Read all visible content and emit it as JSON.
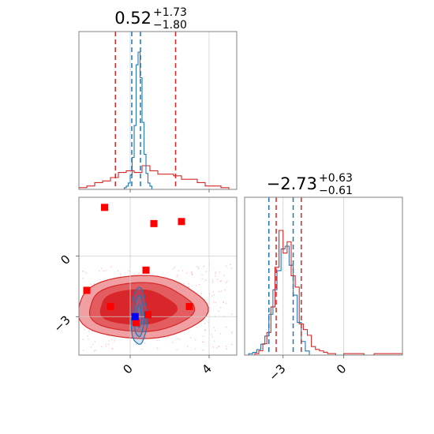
{
  "colors": {
    "red": "#d62728",
    "blue": "#1f77b4",
    "marker_red": "#ff0000",
    "marker_blue": "#0000ff",
    "fill_light": "#f0a0a2",
    "fill_mid": "#e35d60",
    "fill_dark": "#d8262b"
  },
  "chart_data": [
    {
      "type": "histogram",
      "panel": "top-left",
      "title": {
        "median": "0.52",
        "plus": "+1.73",
        "minus": "−1.80"
      },
      "x_range": [
        -2.6,
        5.4
      ],
      "red_lines": [
        -0.75,
        2.3
      ],
      "blue_lines": [
        0.08,
        0.52
      ],
      "series": [
        {
          "color": "red",
          "bins": [
            -2.6,
            -2.2,
            -1.8,
            -1.4,
            -1.0,
            -0.6,
            -0.2,
            0.2,
            0.6,
            1.0,
            1.4,
            1.8,
            2.2,
            2.6,
            3.0,
            3.4,
            3.8,
            4.2,
            4.6,
            5.0,
            5.4
          ],
          "counts": [
            1,
            2,
            4,
            5,
            7,
            10,
            11,
            10,
            14,
            11,
            9,
            9,
            8,
            6,
            6,
            4,
            2,
            2,
            1,
            0
          ]
        },
        {
          "color": "blue",
          "bins": [
            -0.3,
            -0.2,
            -0.1,
            0.0,
            0.1,
            0.2,
            0.3,
            0.4,
            0.5,
            0.6,
            0.7,
            0.8,
            0.9,
            1.0,
            1.1
          ],
          "counts": [
            1,
            2,
            4,
            9,
            20,
            40,
            78,
            86,
            70,
            42,
            22,
            10,
            4,
            2
          ]
        }
      ]
    },
    {
      "type": "scatter",
      "panel": "bottom-left",
      "x_range": [
        -2.6,
        5.4
      ],
      "y_range": [
        -4.9,
        2.9
      ],
      "x_ticks": [
        0,
        4
      ],
      "y_ticks": [
        0,
        -3
      ],
      "x_tick_labels": [
        "0",
        "4"
      ],
      "y_tick_labels": [
        "0",
        "−3"
      ],
      "red_squares": [
        {
          "x": -1.3,
          "y": 2.4
        },
        {
          "x": 1.2,
          "y": 1.6
        },
        {
          "x": 2.6,
          "y": 1.7
        },
        {
          "x": 0.8,
          "y": -0.7
        },
        {
          "x": -2.2,
          "y": -1.7
        },
        {
          "x": -1.0,
          "y": -2.5
        },
        {
          "x": 3.0,
          "y": -2.5
        },
        {
          "x": 0.9,
          "y": -2.9
        },
        {
          "x": 0.3,
          "y": -3.3
        }
      ],
      "blue_squares": [
        {
          "x": 0.25,
          "y": -3.0
        }
      ]
    },
    {
      "type": "histogram",
      "panel": "bottom-right",
      "title": {
        "median": "−2.73",
        "plus": "+0.63",
        "minus": "−0.61"
      },
      "x_range": [
        -4.9,
        2.9
      ],
      "x_ticks": [
        -3,
        0
      ],
      "x_tick_labels": [
        "−3",
        "0"
      ],
      "red_lines": [
        -3.34,
        -2.1
      ],
      "blue_lines": [
        -3.7,
        -2.5
      ],
      "series": [
        {
          "color": "blue",
          "bins": [
            -4.7,
            -4.5,
            -4.3,
            -4.1,
            -3.9,
            -3.7,
            -3.5,
            -3.3,
            -3.1,
            -2.9,
            -2.7,
            -2.5,
            -2.3,
            -2.1,
            -1.9,
            -1.7
          ],
          "counts": [
            1,
            2,
            4,
            8,
            14,
            30,
            48,
            62,
            78,
            80,
            66,
            44,
            24,
            10,
            3
          ]
        },
        {
          "color": "red",
          "bins": [
            -4.4,
            -4.2,
            -4.0,
            -3.8,
            -3.6,
            -3.4,
            -3.2,
            -3.0,
            -2.8,
            -2.6,
            -2.4,
            -2.2,
            -2.0,
            -1.8,
            -1.6,
            -1.4,
            -1.2,
            -1.0,
            -0.8,
            -0.6,
            -0.4,
            -0.2,
            0,
            0.5,
            1.0,
            1.5,
            2.0,
            2.5,
            2.9
          ],
          "counts": [
            1,
            3,
            8,
            16,
            34,
            62,
            88,
            72,
            80,
            56,
            48,
            22,
            18,
            14,
            6,
            4,
            3,
            2,
            1,
            1,
            0,
            0,
            1,
            1,
            0,
            1,
            1,
            1
          ]
        }
      ]
    }
  ]
}
